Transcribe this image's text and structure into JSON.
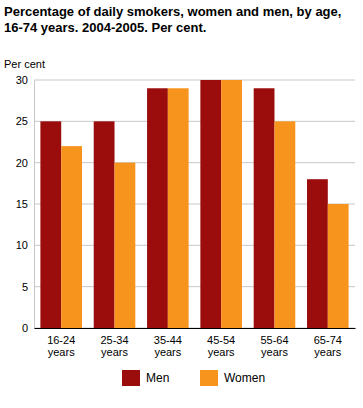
{
  "chart_data": {
    "type": "bar",
    "title": "Percentage of daily smokers, women and men, by age, 16-74 years. 2004-2005. Per cent.",
    "y_label": "Per cent",
    "categories": [
      "16-24 years",
      "25-34 years",
      "35-44 years",
      "45-54 years",
      "55-64 years",
      "65-74 years"
    ],
    "series": [
      {
        "name": "Men",
        "color": "#9b0d0d",
        "values": [
          25,
          25,
          29,
          30,
          29,
          18
        ]
      },
      {
        "name": "Women",
        "color": "#f7941d",
        "values": [
          22,
          20,
          29,
          30,
          25,
          15
        ]
      }
    ],
    "ylim": [
      0,
      30
    ],
    "yticks": [
      0,
      5,
      10,
      15,
      20,
      25,
      30
    ],
    "grid": true,
    "legend": "bottom"
  }
}
